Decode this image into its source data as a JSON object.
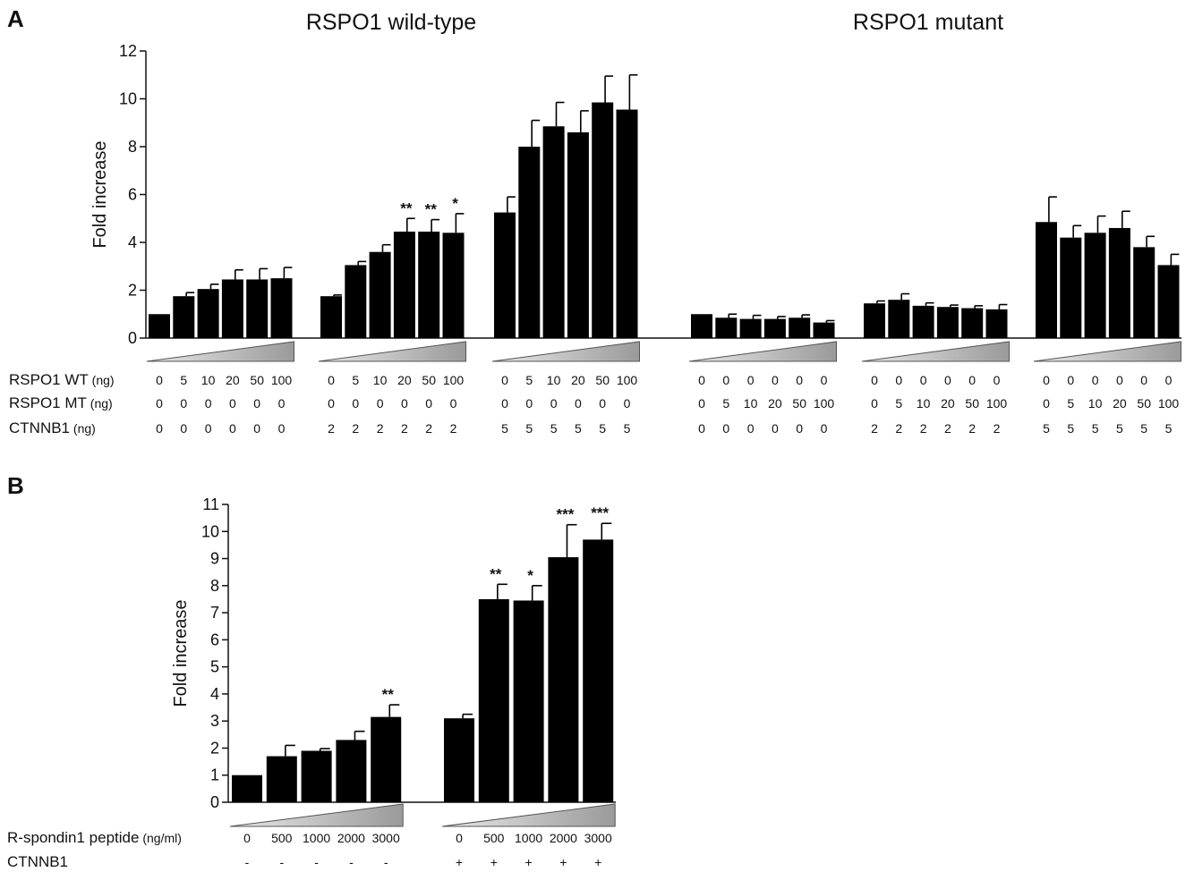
{
  "chart_data": [
    {
      "panel": "A",
      "type": "bar",
      "ylabel": "Fold increase",
      "ylim": [
        0,
        12
      ],
      "yticks": [
        0,
        2,
        4,
        6,
        8,
        10,
        12
      ],
      "group_titles": [
        {
          "text": "RSPO1 wild-type",
          "over_groups": [
            0,
            1,
            2
          ]
        },
        {
          "text": "RSPO1 mutant",
          "over_groups": [
            3,
            4,
            5
          ]
        }
      ],
      "rows": [
        {
          "label": "RSPO1 WT",
          "unit": "(ng)",
          "values": [
            [
              "0",
              "5",
              "10",
              "20",
              "50",
              "100"
            ],
            [
              "0",
              "5",
              "10",
              "20",
              "50",
              "100"
            ],
            [
              "0",
              "5",
              "10",
              "20",
              "50",
              "100"
            ],
            [
              "0",
              "0",
              "0",
              "0",
              "0",
              "0"
            ],
            [
              "0",
              "0",
              "0",
              "0",
              "0",
              "0"
            ],
            [
              "0",
              "0",
              "0",
              "0",
              "0",
              "0"
            ]
          ]
        },
        {
          "label": "RSPO1 MT",
          "unit": "(ng)",
          "values": [
            [
              "0",
              "0",
              "0",
              "0",
              "0",
              "0"
            ],
            [
              "0",
              "0",
              "0",
              "0",
              "0",
              "0"
            ],
            [
              "0",
              "0",
              "0",
              "0",
              "0",
              "0"
            ],
            [
              "0",
              "5",
              "10",
              "20",
              "50",
              "100"
            ],
            [
              "0",
              "5",
              "10",
              "20",
              "50",
              "100"
            ],
            [
              "0",
              "5",
              "10",
              "20",
              "50",
              "100"
            ]
          ]
        },
        {
          "label": "CTNNB1",
          "unit": "(ng)",
          "values": [
            [
              "0",
              "0",
              "0",
              "0",
              "0",
              "0"
            ],
            [
              "2",
              "2",
              "2",
              "2",
              "2",
              "2"
            ],
            [
              "5",
              "5",
              "5",
              "5",
              "5",
              "5"
            ],
            [
              "0",
              "0",
              "0",
              "0",
              "0",
              "0"
            ],
            [
              "2",
              "2",
              "2",
              "2",
              "2",
              "2"
            ],
            [
              "5",
              "5",
              "5",
              "5",
              "5",
              "5"
            ]
          ]
        }
      ],
      "groups": [
        {
          "values": [
            1.0,
            1.75,
            2.05,
            2.45,
            2.45,
            2.5
          ],
          "errors": [
            0,
            0.15,
            0.2,
            0.4,
            0.45,
            0.45
          ],
          "significance": [
            "",
            "",
            "",
            "",
            "",
            ""
          ]
        },
        {
          "values": [
            1.75,
            3.05,
            3.6,
            4.45,
            4.45,
            4.4
          ],
          "errors": [
            0.05,
            0.15,
            0.3,
            0.55,
            0.5,
            0.8
          ],
          "significance": [
            "",
            "",
            "",
            "**",
            "**",
            "*"
          ]
        },
        {
          "values": [
            5.25,
            8.0,
            8.85,
            8.6,
            9.85,
            9.55
          ],
          "errors": [
            0.65,
            1.1,
            1.0,
            0.9,
            1.1,
            1.45
          ],
          "significance": [
            "",
            "",
            "",
            "",
            "",
            ""
          ]
        },
        {
          "values": [
            1.0,
            0.85,
            0.8,
            0.8,
            0.85,
            0.65
          ],
          "errors": [
            0,
            0.15,
            0.15,
            0.1,
            0.12,
            0.08
          ],
          "significance": [
            "",
            "",
            "",
            "",
            "",
            ""
          ]
        },
        {
          "values": [
            1.45,
            1.6,
            1.35,
            1.3,
            1.25,
            1.2
          ],
          "errors": [
            0.1,
            0.25,
            0.12,
            0.08,
            0.1,
            0.2
          ],
          "significance": [
            "",
            "",
            "",
            "",
            "",
            ""
          ]
        },
        {
          "values": [
            4.85,
            4.2,
            4.4,
            4.6,
            3.8,
            3.05
          ],
          "errors": [
            1.05,
            0.5,
            0.7,
            0.7,
            0.45,
            0.45
          ],
          "significance": [
            "",
            "",
            "",
            "",
            "",
            ""
          ]
        }
      ]
    },
    {
      "panel": "B",
      "type": "bar",
      "ylabel": "Fold increase",
      "ylim": [
        0,
        11
      ],
      "yticks": [
        0,
        1,
        2,
        3,
        4,
        5,
        6,
        7,
        8,
        9,
        10,
        11
      ],
      "rows": [
        {
          "label": "R-spondin1 peptide",
          "unit": "(ng/ml)",
          "values": [
            [
              "0",
              "500",
              "1000",
              "2000",
              "3000"
            ],
            [
              "0",
              "500",
              "1000",
              "2000",
              "3000"
            ]
          ]
        },
        {
          "label": "CTNNB1",
          "unit": "",
          "values": [
            [
              "-",
              "-",
              "-",
              "-",
              "-"
            ],
            [
              "+",
              "+",
              "+",
              "+",
              "+"
            ]
          ]
        }
      ],
      "groups": [
        {
          "values": [
            1.0,
            1.7,
            1.9,
            2.3,
            3.15
          ],
          "errors": [
            0,
            0.4,
            0.08,
            0.32,
            0.45
          ],
          "significance": [
            "",
            "",
            "",
            "",
            "**"
          ]
        },
        {
          "values": [
            3.1,
            7.5,
            7.45,
            9.05,
            9.7
          ],
          "errors": [
            0.15,
            0.55,
            0.55,
            1.2,
            0.6
          ],
          "significance": [
            "",
            "**",
            "*",
            "***",
            "***"
          ]
        }
      ]
    }
  ]
}
